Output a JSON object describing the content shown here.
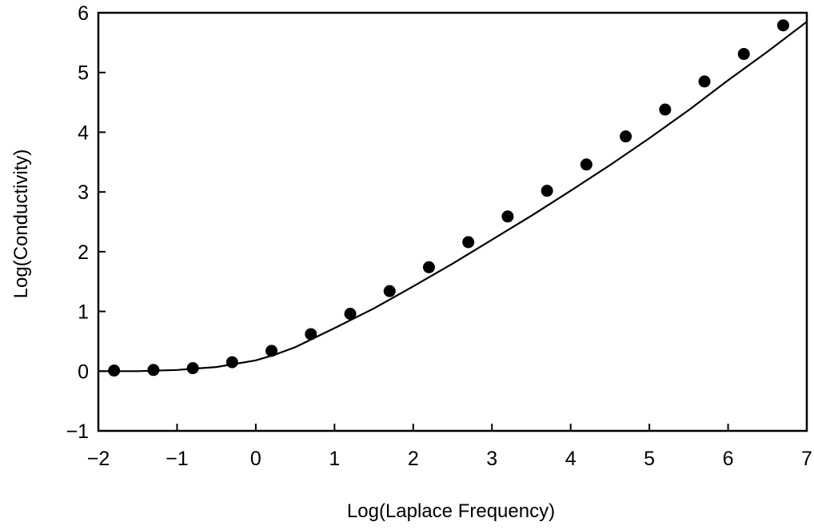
{
  "chart_data": {
    "type": "scatter",
    "title": "",
    "xlabel": "Log(Laplace Frequency)",
    "ylabel": "Log(Conductivity)",
    "xlim": [
      -2,
      7
    ],
    "ylim": [
      -1,
      6
    ],
    "x_ticks": [
      "−2",
      "−1",
      "0",
      "1",
      "2",
      "3",
      "4",
      "5",
      "6",
      "7"
    ],
    "y_ticks": [
      "−1",
      "0",
      "1",
      "2",
      "3",
      "4",
      "5",
      "6"
    ],
    "grid": false,
    "legend": "none",
    "colors": {
      "marker": "#000000",
      "line": "#000000",
      "axes": "#000000"
    },
    "series": [
      {
        "type": "scatter",
        "x": [
          -1.8,
          -1.3,
          -0.8,
          -0.3,
          0.2,
          0.7,
          1.2,
          1.7,
          2.2,
          2.7,
          3.2,
          3.7,
          4.2,
          4.7,
          5.2,
          5.7,
          6.2,
          6.7
        ],
        "y": [
          0.01,
          0.02,
          0.05,
          0.15,
          0.34,
          0.62,
          0.96,
          1.34,
          1.74,
          2.16,
          2.59,
          3.02,
          3.46,
          3.93,
          4.38,
          4.85,
          5.31,
          5.79
        ]
      },
      {
        "type": "line",
        "x": [
          -2.0,
          -1.5,
          -1.0,
          -0.5,
          0.0,
          0.25,
          0.5,
          0.75,
          1.0,
          1.5,
          2.0,
          2.5,
          3.0,
          3.5,
          4.0,
          4.5,
          5.0,
          5.5,
          6.0,
          6.5,
          7.0
        ],
        "y": [
          0.0,
          0.0,
          0.02,
          0.07,
          0.18,
          0.28,
          0.4,
          0.56,
          0.72,
          1.05,
          1.42,
          1.8,
          2.2,
          2.6,
          3.02,
          3.45,
          3.9,
          4.37,
          4.87,
          5.35,
          5.85
        ]
      }
    ]
  }
}
